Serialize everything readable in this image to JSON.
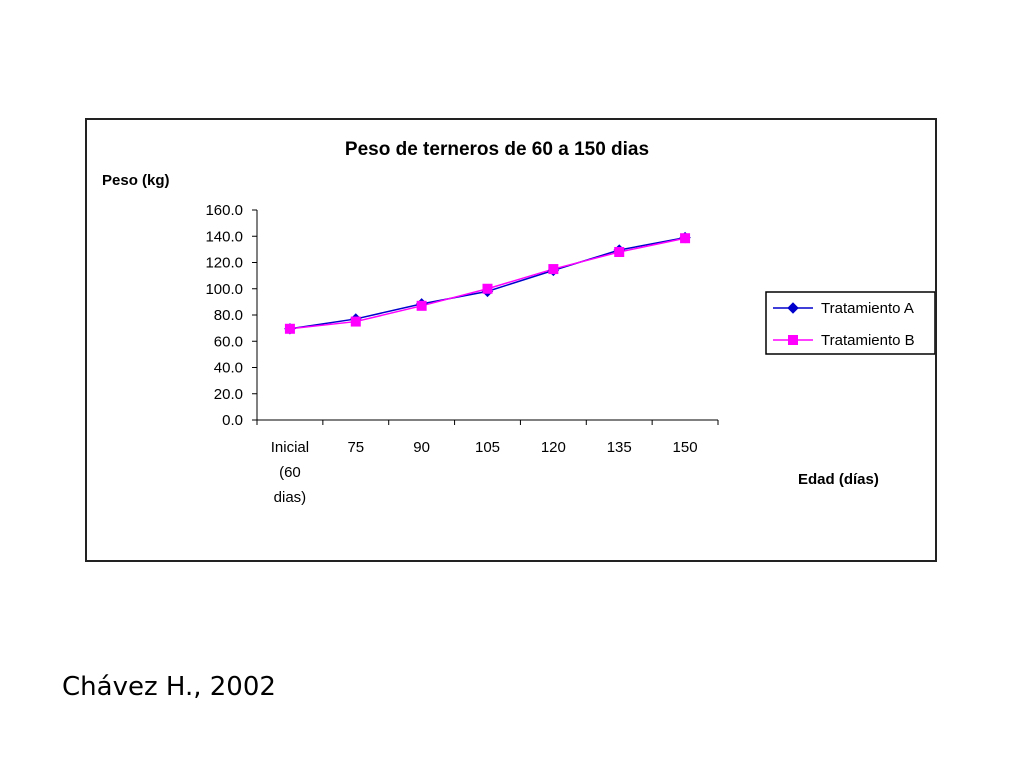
{
  "citation": "Chávez H., 2002",
  "chart_data": {
    "type": "line",
    "title": "Peso de terneros de 60 a 150 dias",
    "ylabel": "Peso (kg)",
    "xlabel": "Edad (días)",
    "categories": [
      [
        "Inicial",
        "(60",
        "dias)"
      ],
      [
        "75"
      ],
      [
        "90"
      ],
      [
        "105"
      ],
      [
        "120"
      ],
      [
        "135"
      ],
      [
        "150"
      ]
    ],
    "ylim": [
      0,
      160
    ],
    "yticks": [
      "0.0",
      "20.0",
      "40.0",
      "60.0",
      "80.0",
      "100.0",
      "120.0",
      "140.0",
      "160.0"
    ],
    "grid": false,
    "legend_position": "right",
    "series": [
      {
        "name": "Tratamiento A",
        "values": [
          69.5,
          77,
          88.5,
          98,
          114,
          129.5,
          139
        ],
        "color": "#0000cc",
        "marker": "diamond"
      },
      {
        "name": "Tratamiento B",
        "values": [
          69.5,
          75,
          87,
          100,
          115,
          128,
          138.5
        ],
        "color": "#ff00ff",
        "marker": "square"
      }
    ]
  }
}
